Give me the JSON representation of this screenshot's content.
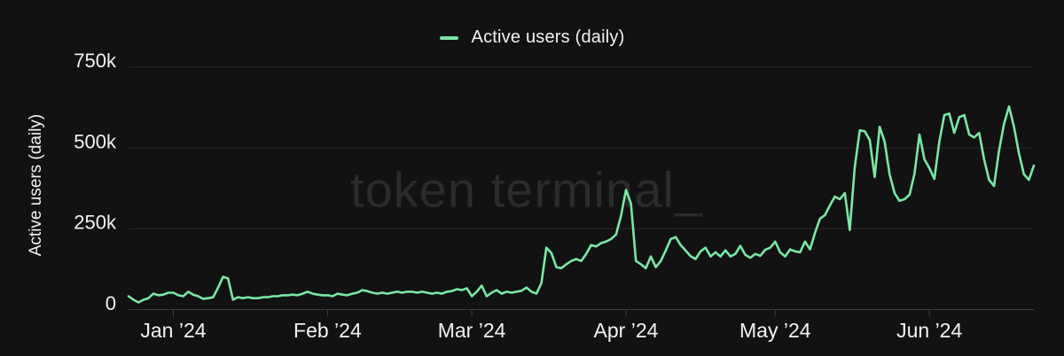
{
  "legend": {
    "items": [
      {
        "label": "Active users (daily)",
        "color": "#7ae8a5"
      }
    ]
  },
  "y_axis": {
    "title": "Active users (daily)"
  },
  "watermark": "token terminal_",
  "colors": {
    "background": "#121212",
    "line": "#7ae8a5",
    "grid": "#28282b",
    "axis": "#3e3e42",
    "text": "#f2f2f2",
    "watermark": "#2b2b2b"
  },
  "chart_data": {
    "type": "line",
    "title": "",
    "xlabel": "",
    "ylabel": "Active users (daily)",
    "ylim": [
      0,
      750000
    ],
    "grid": "horizontal",
    "legend_position": "top-center",
    "y_ticks": [
      {
        "label": "0",
        "value": 0
      },
      {
        "label": "250k",
        "value": 250000
      },
      {
        "label": "500k",
        "value": 500000
      },
      {
        "label": "750k",
        "value": 750000
      }
    ],
    "x_ticks": [
      {
        "label": "Jan ’24",
        "day_index": 9
      },
      {
        "label": "Feb ’24",
        "day_index": 40
      },
      {
        "label": "Mar ’24",
        "day_index": 69
      },
      {
        "label": "Apr ’24",
        "day_index": 100
      },
      {
        "label": "May ’24",
        "day_index": 130
      },
      {
        "label": "Jun ’24",
        "day_index": 161
      }
    ],
    "series": [
      {
        "name": "Active users (daily)",
        "cadence": "daily",
        "start_date": "2023-12-23",
        "end_date": "2024-06-22",
        "unit": "users",
        "values": [
          41000,
          30000,
          22000,
          30000,
          35000,
          49000,
          44000,
          46000,
          52000,
          52000,
          44000,
          41000,
          55000,
          46000,
          41000,
          33000,
          35000,
          38000,
          68000,
          101000,
          96000,
          30000,
          38000,
          35000,
          38000,
          35000,
          35000,
          38000,
          38000,
          41000,
          41000,
          44000,
          44000,
          46000,
          44000,
          49000,
          55000,
          49000,
          46000,
          44000,
          44000,
          41000,
          49000,
          46000,
          44000,
          49000,
          52000,
          60000,
          57000,
          52000,
          49000,
          52000,
          49000,
          52000,
          55000,
          52000,
          55000,
          55000,
          52000,
          55000,
          52000,
          49000,
          52000,
          49000,
          55000,
          57000,
          63000,
          60000,
          66000,
          41000,
          55000,
          74000,
          41000,
          52000,
          60000,
          49000,
          55000,
          52000,
          55000,
          58000,
          68000,
          55000,
          49000,
          82000,
          191000,
          175000,
          131000,
          128000,
          140000,
          150000,
          156000,
          150000,
          172000,
          199000,
          195000,
          205000,
          210000,
          218000,
          232000,
          290000,
          370000,
          328000,
          150000,
          140000,
          128000,
          164000,
          131000,
          150000,
          183000,
          218000,
          224000,
          199000,
          182000,
          165000,
          156000,
          180000,
          191000,
          164000,
          177000,
          164000,
          183000,
          164000,
          172000,
          197000,
          169000,
          160000,
          172000,
          166000,
          185000,
          191000,
          210000,
          177000,
          164000,
          186000,
          180000,
          177000,
          210000,
          186000,
          237000,
          281000,
          292000,
          322000,
          349000,
          341000,
          360000,
          246000,
          440000,
          554000,
          551000,
          524000,
          410000,
          565000,
          519000,
          418000,
          360000,
          336000,
          341000,
          355000,
          420000,
          541000,
          464000,
          437000,
          404000,
          519000,
          601000,
          606000,
          546000,
          595000,
          601000,
          541000,
          532000,
          546000,
          464000,
          401000,
          382000,
          491000,
          573000,
          628000,
          565000,
          483000,
          418000,
          401000,
          445000
        ]
      }
    ]
  }
}
